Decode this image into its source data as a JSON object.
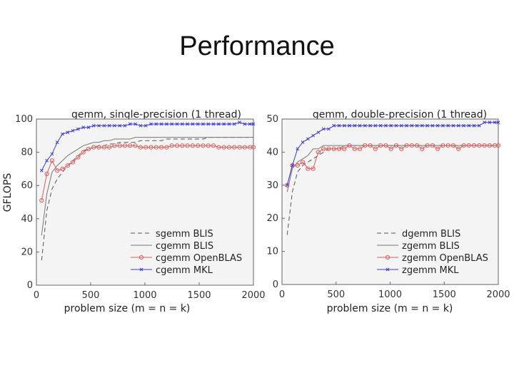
{
  "slide": {
    "title": "Performance"
  },
  "colors": {
    "mkl": "#3a3ad6",
    "openblas": "#e05a5a",
    "blis_dashed": "#555555",
    "blis_solid": "#777777",
    "axes": "#666666",
    "grid_bg": "#f4f4f4"
  },
  "chart_data": [
    {
      "type": "line",
      "title": "gemm, single-precision (1 thread)",
      "xlabel": "problem size (m = n = k)",
      "ylabel": "GFLOPS",
      "xlim": [
        0,
        2000
      ],
      "ylim": [
        0,
        100
      ],
      "xticks": [
        "0",
        "500",
        "1000",
        "1500",
        "2000"
      ],
      "yticks": [
        "0",
        "20",
        "40",
        "60",
        "80",
        "100"
      ],
      "legend": "bottom-right",
      "x": [
        48,
        96,
        144,
        192,
        240,
        288,
        336,
        384,
        432,
        480,
        528,
        576,
        624,
        672,
        720,
        768,
        816,
        864,
        912,
        960,
        1008,
        1056,
        1104,
        1152,
        1200,
        1248,
        1296,
        1344,
        1392,
        1440,
        1488,
        1536,
        1584,
        1632,
        1680,
        1728,
        1776,
        1824,
        1872,
        1920,
        1968,
        2000
      ],
      "series": [
        {
          "name": "sgemm BLIS",
          "style": "dashed",
          "marker": "none",
          "values": [
            15,
            45,
            58,
            64,
            68,
            72,
            75,
            78,
            81,
            82,
            83,
            84,
            84,
            85,
            85,
            86,
            86,
            86,
            86,
            87,
            87,
            87,
            87,
            87,
            88,
            88,
            88,
            88,
            88,
            88,
            88,
            88,
            89,
            89,
            89,
            89,
            89,
            89,
            89,
            89,
            89,
            89
          ]
        },
        {
          "name": "cgemm BLIS",
          "style": "solid",
          "marker": "none",
          "values": [
            30,
            55,
            68,
            72,
            75,
            78,
            80,
            82,
            84,
            85,
            86,
            86,
            87,
            87,
            88,
            88,
            88,
            88,
            89,
            89,
            89,
            89,
            89,
            89,
            89,
            89,
            89,
            89,
            89,
            89,
            89,
            89,
            89,
            89,
            89,
            89,
            89,
            89,
            89,
            89,
            89,
            89
          ]
        },
        {
          "name": "cgemm OpenBLAS",
          "style": "solid",
          "marker": "circle",
          "values": [
            51,
            67,
            75,
            69,
            70,
            72,
            74,
            77,
            80,
            82,
            83,
            83,
            83,
            83,
            84,
            84,
            84,
            84,
            84,
            83,
            83,
            83,
            83,
            83,
            83,
            84,
            84,
            84,
            84,
            84,
            84,
            84,
            84,
            84,
            83,
            83,
            83,
            83,
            83,
            83,
            83,
            83
          ]
        },
        {
          "name": "cgemm MKL",
          "style": "solid",
          "marker": "x",
          "values": [
            69,
            75,
            79,
            86,
            91,
            92,
            93,
            94,
            95,
            95,
            96,
            96,
            96,
            96,
            96,
            96,
            96,
            97,
            97,
            96,
            96,
            97,
            97,
            97,
            97,
            97,
            97,
            97,
            97,
            97,
            97,
            97,
            97,
            97,
            97,
            97,
            97,
            97,
            98,
            97,
            97,
            97
          ]
        }
      ]
    },
    {
      "type": "line",
      "title": "gemm, double-precision (1 thread)",
      "xlabel": "problem size (m = n = k)",
      "ylabel": "",
      "xlim": [
        0,
        2000
      ],
      "ylim": [
        0,
        50
      ],
      "xticks": [
        "0",
        "500",
        "1000",
        "1500",
        "2000"
      ],
      "yticks": [
        "0",
        "10",
        "20",
        "30",
        "40",
        "50"
      ],
      "legend": "bottom-right",
      "x": [
        48,
        96,
        144,
        192,
        240,
        288,
        336,
        384,
        432,
        480,
        528,
        576,
        624,
        672,
        720,
        768,
        816,
        864,
        912,
        960,
        1008,
        1056,
        1104,
        1152,
        1200,
        1248,
        1296,
        1344,
        1392,
        1440,
        1488,
        1536,
        1584,
        1632,
        1680,
        1728,
        1776,
        1824,
        1872,
        1920,
        1968,
        2000
      ],
      "series": [
        {
          "name": "dgemm BLIS",
          "style": "dashed",
          "marker": "none",
          "values": [
            15,
            28,
            34,
            36,
            37,
            38,
            39,
            40,
            41,
            41,
            41,
            42,
            42,
            42,
            42,
            42,
            42,
            42,
            42,
            42,
            42,
            42,
            42,
            42,
            42,
            42,
            42,
            42,
            42,
            42,
            42,
            42,
            42,
            42,
            42,
            42,
            42,
            42,
            42,
            42,
            42,
            42
          ]
        },
        {
          "name": "zgemm BLIS",
          "style": "solid",
          "marker": "none",
          "values": [
            28,
            35,
            37,
            38,
            39,
            41,
            41,
            42,
            42,
            42,
            42,
            42,
            42,
            42,
            42,
            42,
            42,
            42,
            42,
            42,
            42,
            42,
            42,
            42,
            42,
            42,
            42,
            42,
            42,
            42,
            42,
            42,
            42,
            42,
            42,
            42,
            42,
            42,
            42,
            42,
            42,
            42
          ]
        },
        {
          "name": "zgemm OpenBLAS",
          "style": "solid",
          "marker": "circle",
          "values": [
            30,
            36,
            36,
            37,
            35,
            35,
            40,
            41,
            41,
            41,
            41,
            41,
            42,
            41,
            41,
            42,
            42,
            41,
            42,
            42,
            41,
            42,
            41,
            42,
            42,
            42,
            41,
            42,
            42,
            41,
            42,
            42,
            42,
            41,
            42,
            42,
            42,
            42,
            42,
            42,
            42,
            42
          ]
        },
        {
          "name": "zgemm MKL",
          "style": "solid",
          "marker": "x",
          "values": [
            30,
            36,
            41,
            43,
            44,
            45,
            46,
            47,
            47,
            48,
            48,
            48,
            48,
            48,
            48,
            48,
            48,
            48,
            48,
            48,
            48,
            48,
            48,
            48,
            48,
            48,
            48,
            48,
            48,
            48,
            48,
            48,
            48,
            48,
            48,
            48,
            48,
            48,
            49,
            49,
            49,
            49
          ]
        }
      ]
    }
  ]
}
